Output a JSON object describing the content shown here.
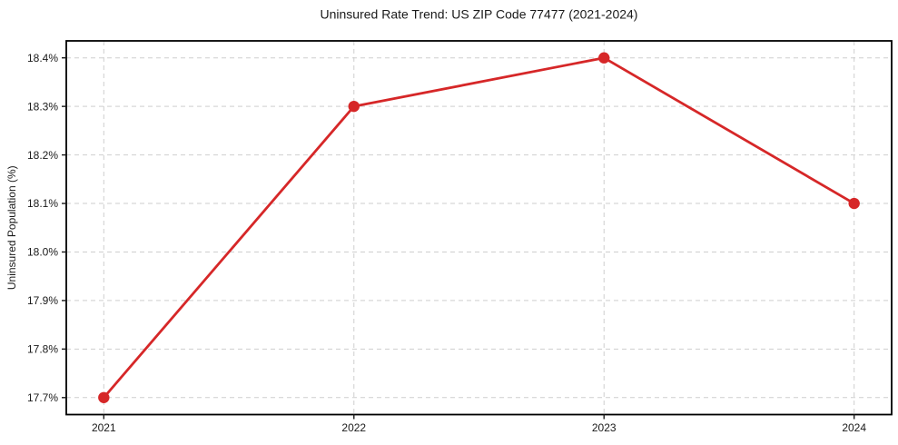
{
  "chart_data": {
    "type": "line",
    "title": "Uninsured Rate Trend: US ZIP Code 77477 (2021-2024)",
    "xlabel": "",
    "ylabel": "Uninsured Population (%)",
    "x": [
      2021,
      2022,
      2023,
      2024
    ],
    "x_labels": [
      "2021",
      "2022",
      "2023",
      "2024"
    ],
    "series": [
      {
        "name": "Uninsured Rate",
        "values": [
          17.7,
          18.3,
          18.4,
          18.1
        ]
      }
    ],
    "y_ticks": [
      17.7,
      17.8,
      17.9,
      18.0,
      18.1,
      18.2,
      18.3,
      18.4
    ],
    "y_tick_labels": [
      "17.7%",
      "17.8%",
      "17.9%",
      "18.0%",
      "18.1%",
      "18.2%",
      "18.3%",
      "18.4%"
    ],
    "xlim": [
      2020.85,
      2024.15
    ],
    "ylim": [
      17.665,
      18.435
    ],
    "grid": true,
    "grid_style": "dashed",
    "legend_position": "none",
    "marker": "circle",
    "colors": {
      "line": "#d62728",
      "marker": "#d62728",
      "grid": "#c9c9c9",
      "spine": "#000000",
      "text": "#1a1a1a",
      "background": "#ffffff"
    }
  }
}
